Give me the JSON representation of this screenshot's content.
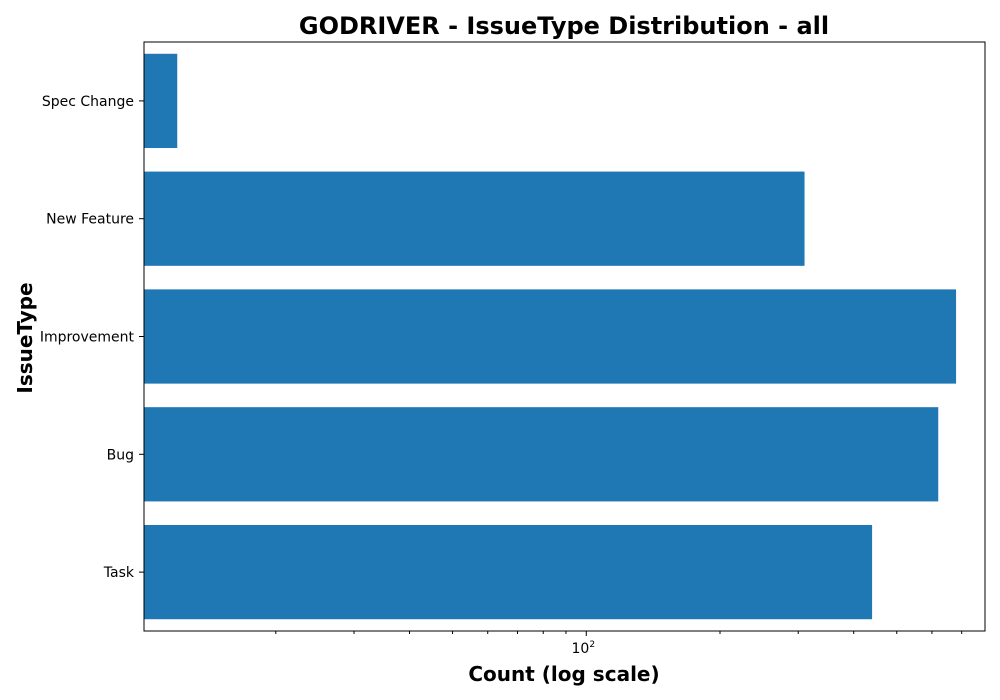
{
  "chart_data": {
    "type": "bar",
    "orientation": "horizontal",
    "title": "GODRIVER - IssueType Distribution - all",
    "xlabel": "Count (log scale)",
    "ylabel": "IssueType",
    "xscale": "log",
    "xlim": [
      10.1,
      790
    ],
    "x_tick_labels": [
      {
        "base": "10",
        "exp": "2",
        "value": 100
      }
    ],
    "categories": [
      "Task",
      "Bug",
      "Improvement",
      "New Feature",
      "Spec Change"
    ],
    "values": [
      440,
      620,
      680,
      310,
      12
    ],
    "bar_color": "#1f77b4"
  }
}
